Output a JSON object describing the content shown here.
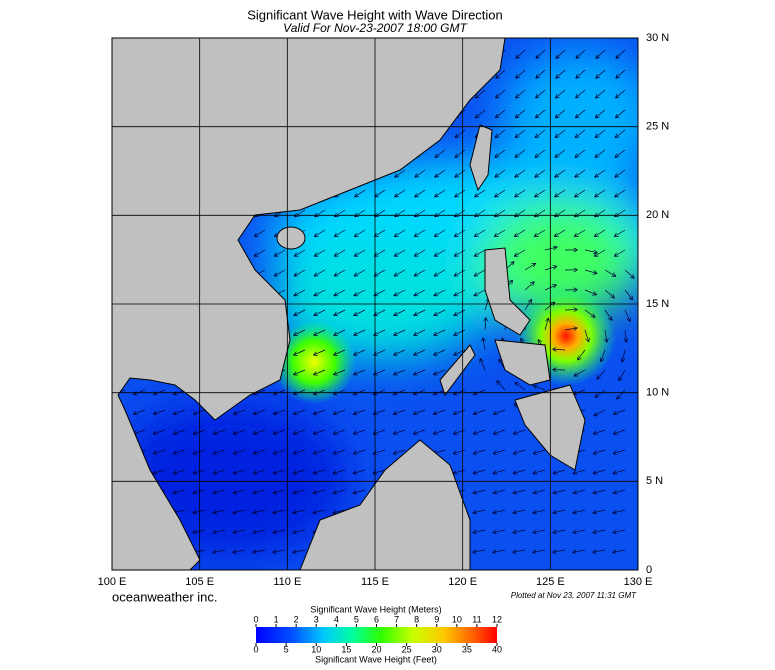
{
  "title": "Significant Wave Height with Wave Direction",
  "subtitle": "Valid For Nov-23-2007 18:00 GMT",
  "map": {
    "lon_range": [
      100,
      130
    ],
    "lat_range": [
      0,
      30
    ],
    "lon_ticks": [
      {
        "value": 100,
        "label": "100 E"
      },
      {
        "value": 105,
        "label": "105 E"
      },
      {
        "value": 110,
        "label": "110 E"
      },
      {
        "value": 115,
        "label": "115 E"
      },
      {
        "value": 120,
        "label": "120 E"
      },
      {
        "value": 125,
        "label": "125 E"
      },
      {
        "value": 130,
        "label": "130 E"
      }
    ],
    "lat_ticks": [
      0,
      {
        "value": 5,
        "label": "5 N"
      },
      {
        "value": 10,
        "label": "10 N"
      },
      {
        "value": 15,
        "label": "15 N"
      },
      {
        "value": 20,
        "label": "20 N"
      },
      {
        "value": 25,
        "label": "25 N"
      },
      {
        "value": 30,
        "label": "30 N"
      }
    ]
  },
  "credit": "oceanweather inc.",
  "plotted": "Plotted at Nov 23, 2007 11:31 GMT",
  "colorbar": {
    "label_top": "Significant Wave Height (Meters)",
    "label_bottom": "Significant Wave Height (Feet)",
    "meters_range": [
      0,
      12
    ],
    "meters_ticks": [
      0,
      1,
      2,
      3,
      4,
      5,
      6,
      7,
      8,
      9,
      10,
      11,
      12
    ],
    "feet_range": [
      0,
      40
    ],
    "feet_ticks": [
      0,
      5,
      10,
      15,
      20,
      25,
      30,
      35,
      40
    ]
  }
}
